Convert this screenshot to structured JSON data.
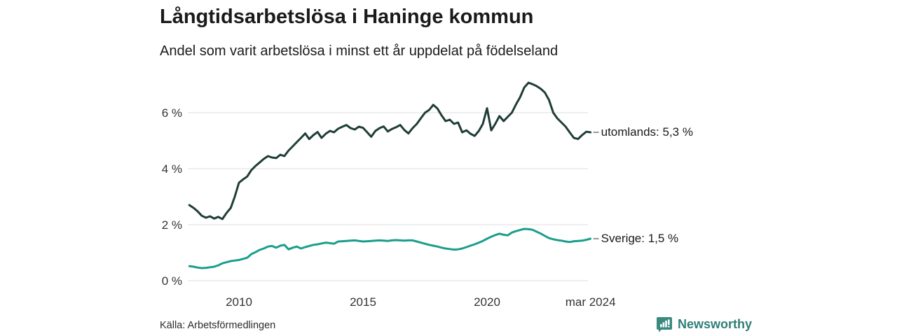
{
  "chart_data": {
    "type": "line",
    "title": "Långtidsarbetslösa i Haninge kommun",
    "subtitle": "Andel som varit arbetslösa i minst ett år uppdelat på födelseland",
    "source": "Källa: Arbetsförmedlingen",
    "grid": true,
    "legend_position": "end-labels-right",
    "colors": {
      "grid": "#dcdcdc",
      "tick_label": "#333333",
      "end_dash": "#777777"
    },
    "x_axis": {
      "range": [
        2008.0,
        2024.25
      ],
      "ticks": [
        {
          "value": 2010,
          "label": "2010"
        },
        {
          "value": 2015,
          "label": "2015"
        },
        {
          "value": 2020,
          "label": "2020"
        },
        {
          "value": 2024.17,
          "label": "mar 2024"
        }
      ]
    },
    "y_axis": {
      "range": [
        0,
        7.5
      ],
      "unit": "%",
      "ticks": [
        {
          "value": 0,
          "label": "0 %"
        },
        {
          "value": 2,
          "label": "2 %"
        },
        {
          "value": 4,
          "label": "4 %"
        },
        {
          "value": 6,
          "label": "6 %"
        }
      ]
    },
    "series": [
      {
        "name": "utomlands",
        "end_label": "utomlands: 5,3 %",
        "last_value": "5,3 %",
        "color": "#1f3d38",
        "points": [
          [
            2008.0,
            2.7
          ],
          [
            2008.17,
            2.6
          ],
          [
            2008.33,
            2.48
          ],
          [
            2008.5,
            2.32
          ],
          [
            2008.67,
            2.25
          ],
          [
            2008.83,
            2.3
          ],
          [
            2009.0,
            2.22
          ],
          [
            2009.17,
            2.28
          ],
          [
            2009.33,
            2.2
          ],
          [
            2009.5,
            2.42
          ],
          [
            2009.67,
            2.6
          ],
          [
            2009.83,
            3.0
          ],
          [
            2010.0,
            3.5
          ],
          [
            2010.17,
            3.62
          ],
          [
            2010.33,
            3.72
          ],
          [
            2010.5,
            3.95
          ],
          [
            2010.67,
            4.1
          ],
          [
            2010.83,
            4.22
          ],
          [
            2011.0,
            4.35
          ],
          [
            2011.17,
            4.45
          ],
          [
            2011.33,
            4.4
          ],
          [
            2011.5,
            4.38
          ],
          [
            2011.67,
            4.5
          ],
          [
            2011.83,
            4.45
          ],
          [
            2012.0,
            4.65
          ],
          [
            2012.17,
            4.8
          ],
          [
            2012.33,
            4.95
          ],
          [
            2012.5,
            5.1
          ],
          [
            2012.67,
            5.26
          ],
          [
            2012.83,
            5.06
          ],
          [
            2013.0,
            5.2
          ],
          [
            2013.17,
            5.31
          ],
          [
            2013.33,
            5.1
          ],
          [
            2013.5,
            5.25
          ],
          [
            2013.67,
            5.35
          ],
          [
            2013.83,
            5.3
          ],
          [
            2014.0,
            5.43
          ],
          [
            2014.17,
            5.5
          ],
          [
            2014.33,
            5.56
          ],
          [
            2014.5,
            5.45
          ],
          [
            2014.67,
            5.4
          ],
          [
            2014.83,
            5.5
          ],
          [
            2015.0,
            5.46
          ],
          [
            2015.17,
            5.3
          ],
          [
            2015.33,
            5.14
          ],
          [
            2015.5,
            5.35
          ],
          [
            2015.67,
            5.45
          ],
          [
            2015.83,
            5.51
          ],
          [
            2016.0,
            5.33
          ],
          [
            2016.17,
            5.42
          ],
          [
            2016.33,
            5.48
          ],
          [
            2016.5,
            5.56
          ],
          [
            2016.67,
            5.38
          ],
          [
            2016.83,
            5.26
          ],
          [
            2017.0,
            5.45
          ],
          [
            2017.17,
            5.6
          ],
          [
            2017.33,
            5.8
          ],
          [
            2017.5,
            6.0
          ],
          [
            2017.67,
            6.1
          ],
          [
            2017.83,
            6.28
          ],
          [
            2018.0,
            6.15
          ],
          [
            2018.17,
            5.9
          ],
          [
            2018.33,
            5.7
          ],
          [
            2018.5,
            5.75
          ],
          [
            2018.67,
            5.6
          ],
          [
            2018.83,
            5.65
          ],
          [
            2019.0,
            5.3
          ],
          [
            2019.17,
            5.37
          ],
          [
            2019.33,
            5.25
          ],
          [
            2019.5,
            5.17
          ],
          [
            2019.67,
            5.35
          ],
          [
            2019.83,
            5.6
          ],
          [
            2020.0,
            6.16
          ],
          [
            2020.17,
            5.37
          ],
          [
            2020.33,
            5.6
          ],
          [
            2020.5,
            5.88
          ],
          [
            2020.67,
            5.7
          ],
          [
            2020.83,
            5.85
          ],
          [
            2021.0,
            6.0
          ],
          [
            2021.17,
            6.3
          ],
          [
            2021.33,
            6.55
          ],
          [
            2021.5,
            6.9
          ],
          [
            2021.67,
            7.07
          ],
          [
            2021.83,
            7.02
          ],
          [
            2022.0,
            6.95
          ],
          [
            2022.17,
            6.85
          ],
          [
            2022.33,
            6.72
          ],
          [
            2022.5,
            6.45
          ],
          [
            2022.67,
            6.0
          ],
          [
            2022.83,
            5.8
          ],
          [
            2023.0,
            5.65
          ],
          [
            2023.17,
            5.5
          ],
          [
            2023.33,
            5.3
          ],
          [
            2023.5,
            5.1
          ],
          [
            2023.67,
            5.06
          ],
          [
            2023.83,
            5.2
          ],
          [
            2024.0,
            5.32
          ],
          [
            2024.17,
            5.3
          ]
        ]
      },
      {
        "name": "Sverige",
        "end_label": "Sverige: 1,5 %",
        "last_value": "1,5 %",
        "color": "#1a9e8a",
        "points": [
          [
            2008.0,
            0.52
          ],
          [
            2008.17,
            0.5
          ],
          [
            2008.33,
            0.47
          ],
          [
            2008.5,
            0.45
          ],
          [
            2008.67,
            0.46
          ],
          [
            2008.83,
            0.48
          ],
          [
            2009.0,
            0.5
          ],
          [
            2009.17,
            0.55
          ],
          [
            2009.33,
            0.62
          ],
          [
            2009.5,
            0.66
          ],
          [
            2009.67,
            0.7
          ],
          [
            2009.83,
            0.72
          ],
          [
            2010.0,
            0.74
          ],
          [
            2010.17,
            0.78
          ],
          [
            2010.33,
            0.82
          ],
          [
            2010.5,
            0.95
          ],
          [
            2010.67,
            1.02
          ],
          [
            2010.83,
            1.1
          ],
          [
            2011.0,
            1.15
          ],
          [
            2011.17,
            1.22
          ],
          [
            2011.33,
            1.24
          ],
          [
            2011.5,
            1.18
          ],
          [
            2011.67,
            1.25
          ],
          [
            2011.83,
            1.28
          ],
          [
            2012.0,
            1.12
          ],
          [
            2012.17,
            1.18
          ],
          [
            2012.33,
            1.22
          ],
          [
            2012.5,
            1.15
          ],
          [
            2012.67,
            1.2
          ],
          [
            2012.83,
            1.24
          ],
          [
            2013.0,
            1.28
          ],
          [
            2013.17,
            1.3
          ],
          [
            2013.33,
            1.33
          ],
          [
            2013.5,
            1.36
          ],
          [
            2013.67,
            1.34
          ],
          [
            2013.83,
            1.32
          ],
          [
            2014.0,
            1.4
          ],
          [
            2014.17,
            1.41
          ],
          [
            2014.33,
            1.42
          ],
          [
            2014.5,
            1.43
          ],
          [
            2014.67,
            1.44
          ],
          [
            2014.83,
            1.42
          ],
          [
            2015.0,
            1.4
          ],
          [
            2015.17,
            1.41
          ],
          [
            2015.33,
            1.42
          ],
          [
            2015.5,
            1.43
          ],
          [
            2015.67,
            1.44
          ],
          [
            2015.83,
            1.43
          ],
          [
            2016.0,
            1.42
          ],
          [
            2016.17,
            1.44
          ],
          [
            2016.33,
            1.45
          ],
          [
            2016.5,
            1.44
          ],
          [
            2016.67,
            1.43
          ],
          [
            2016.83,
            1.44
          ],
          [
            2017.0,
            1.44
          ],
          [
            2017.17,
            1.4
          ],
          [
            2017.33,
            1.36
          ],
          [
            2017.5,
            1.32
          ],
          [
            2017.67,
            1.28
          ],
          [
            2017.83,
            1.25
          ],
          [
            2018.0,
            1.22
          ],
          [
            2018.17,
            1.18
          ],
          [
            2018.33,
            1.15
          ],
          [
            2018.5,
            1.13
          ],
          [
            2018.67,
            1.11
          ],
          [
            2018.83,
            1.12
          ],
          [
            2019.0,
            1.15
          ],
          [
            2019.17,
            1.2
          ],
          [
            2019.33,
            1.25
          ],
          [
            2019.5,
            1.3
          ],
          [
            2019.67,
            1.36
          ],
          [
            2019.83,
            1.42
          ],
          [
            2020.0,
            1.5
          ],
          [
            2020.17,
            1.57
          ],
          [
            2020.33,
            1.63
          ],
          [
            2020.5,
            1.68
          ],
          [
            2020.67,
            1.64
          ],
          [
            2020.83,
            1.62
          ],
          [
            2021.0,
            1.72
          ],
          [
            2021.17,
            1.77
          ],
          [
            2021.33,
            1.81
          ],
          [
            2021.5,
            1.85
          ],
          [
            2021.67,
            1.84
          ],
          [
            2021.83,
            1.82
          ],
          [
            2022.0,
            1.75
          ],
          [
            2022.17,
            1.68
          ],
          [
            2022.33,
            1.6
          ],
          [
            2022.5,
            1.52
          ],
          [
            2022.67,
            1.48
          ],
          [
            2022.83,
            1.45
          ],
          [
            2023.0,
            1.43
          ],
          [
            2023.17,
            1.4
          ],
          [
            2023.33,
            1.38
          ],
          [
            2023.5,
            1.41
          ],
          [
            2023.67,
            1.42
          ],
          [
            2023.83,
            1.43
          ],
          [
            2024.0,
            1.46
          ],
          [
            2024.17,
            1.5
          ]
        ]
      }
    ]
  },
  "brand": {
    "name": "Newsworthy",
    "icon": "newsworthy-chart-bubble-icon",
    "icon_color": "#3a8a80",
    "text_color": "#2f7f77"
  }
}
